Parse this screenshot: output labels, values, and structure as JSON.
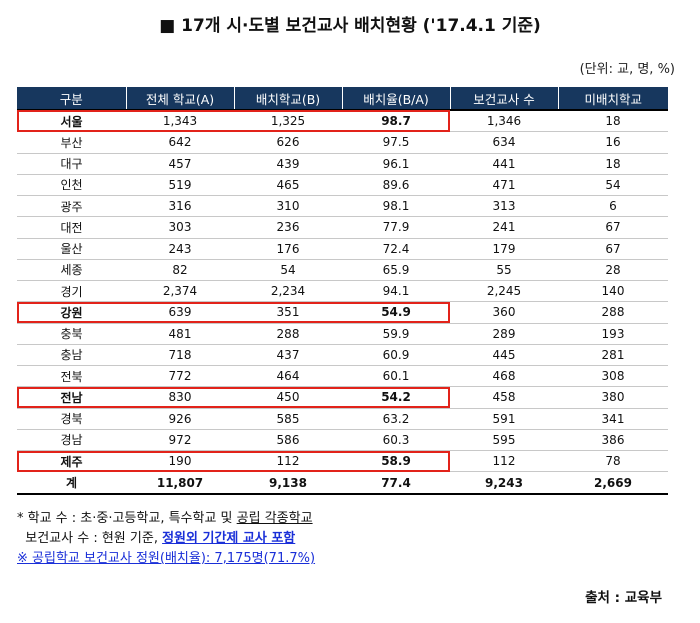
{
  "title": "■ 17개 시·도별 보건교사 배치현황 ('17.4.1 기준)",
  "unit": "(단위: 교, 명, %)",
  "columns": [
    "구분",
    "전체 학교(A)",
    "배치학교(B)",
    "배치율(B/A)",
    "보건교사 수",
    "미배치학교"
  ],
  "rows": [
    {
      "region": "서울",
      "total": "1,343",
      "placed": "1,325",
      "rate": "98.7",
      "teachers": "1,346",
      "unplaced": "18",
      "highlight": true
    },
    {
      "region": "부산",
      "total": "642",
      "placed": "626",
      "rate": "97.5",
      "teachers": "634",
      "unplaced": "16",
      "highlight": false
    },
    {
      "region": "대구",
      "total": "457",
      "placed": "439",
      "rate": "96.1",
      "teachers": "441",
      "unplaced": "18",
      "highlight": false
    },
    {
      "region": "인천",
      "total": "519",
      "placed": "465",
      "rate": "89.6",
      "teachers": "471",
      "unplaced": "54",
      "highlight": false
    },
    {
      "region": "광주",
      "total": "316",
      "placed": "310",
      "rate": "98.1",
      "teachers": "313",
      "unplaced": "6",
      "highlight": false
    },
    {
      "region": "대전",
      "total": "303",
      "placed": "236",
      "rate": "77.9",
      "teachers": "241",
      "unplaced": "67",
      "highlight": false
    },
    {
      "region": "울산",
      "total": "243",
      "placed": "176",
      "rate": "72.4",
      "teachers": "179",
      "unplaced": "67",
      "highlight": false
    },
    {
      "region": "세종",
      "total": "82",
      "placed": "54",
      "rate": "65.9",
      "teachers": "55",
      "unplaced": "28",
      "highlight": false
    },
    {
      "region": "경기",
      "total": "2,374",
      "placed": "2,234",
      "rate": "94.1",
      "teachers": "2,245",
      "unplaced": "140",
      "highlight": false
    },
    {
      "region": "강원",
      "total": "639",
      "placed": "351",
      "rate": "54.9",
      "teachers": "360",
      "unplaced": "288",
      "highlight": true
    },
    {
      "region": "충북",
      "total": "481",
      "placed": "288",
      "rate": "59.9",
      "teachers": "289",
      "unplaced": "193",
      "highlight": false
    },
    {
      "region": "충남",
      "total": "718",
      "placed": "437",
      "rate": "60.9",
      "teachers": "445",
      "unplaced": "281",
      "highlight": false
    },
    {
      "region": "전북",
      "total": "772",
      "placed": "464",
      "rate": "60.1",
      "teachers": "468",
      "unplaced": "308",
      "highlight": false
    },
    {
      "region": "전남",
      "total": "830",
      "placed": "450",
      "rate": "54.2",
      "teachers": "458",
      "unplaced": "380",
      "highlight": true
    },
    {
      "region": "경북",
      "total": "926",
      "placed": "585",
      "rate": "63.2",
      "teachers": "591",
      "unplaced": "341",
      "highlight": false
    },
    {
      "region": "경남",
      "total": "972",
      "placed": "586",
      "rate": "60.3",
      "teachers": "595",
      "unplaced": "386",
      "highlight": false
    },
    {
      "region": "제주",
      "total": "190",
      "placed": "112",
      "rate": "58.9",
      "teachers": "112",
      "unplaced": "78",
      "highlight": true
    }
  ],
  "total_row": {
    "region": "계",
    "total": "11,807",
    "placed": "9,138",
    "rate": "77.4",
    "teachers": "9,243",
    "unplaced": "2,669"
  },
  "notes": {
    "line1_prefix": "* 학교 수 : 초·중·고등학교, 특수학교 및 ",
    "line1_underlined": "공립 각종학교",
    "line2_prefix": "  보건교사 수 : 현원 기준, ",
    "line2_emphasis": "정원외 기간제 교사 포함",
    "line3": "※ 공립학교 보건교사 정원(배치율): 7,175명(71.7%)"
  },
  "source": "출처 : 교육부",
  "colors": {
    "header_bg": "#17375e",
    "highlight_border": "#e2231a",
    "note_blue": "#1a2fd8"
  }
}
